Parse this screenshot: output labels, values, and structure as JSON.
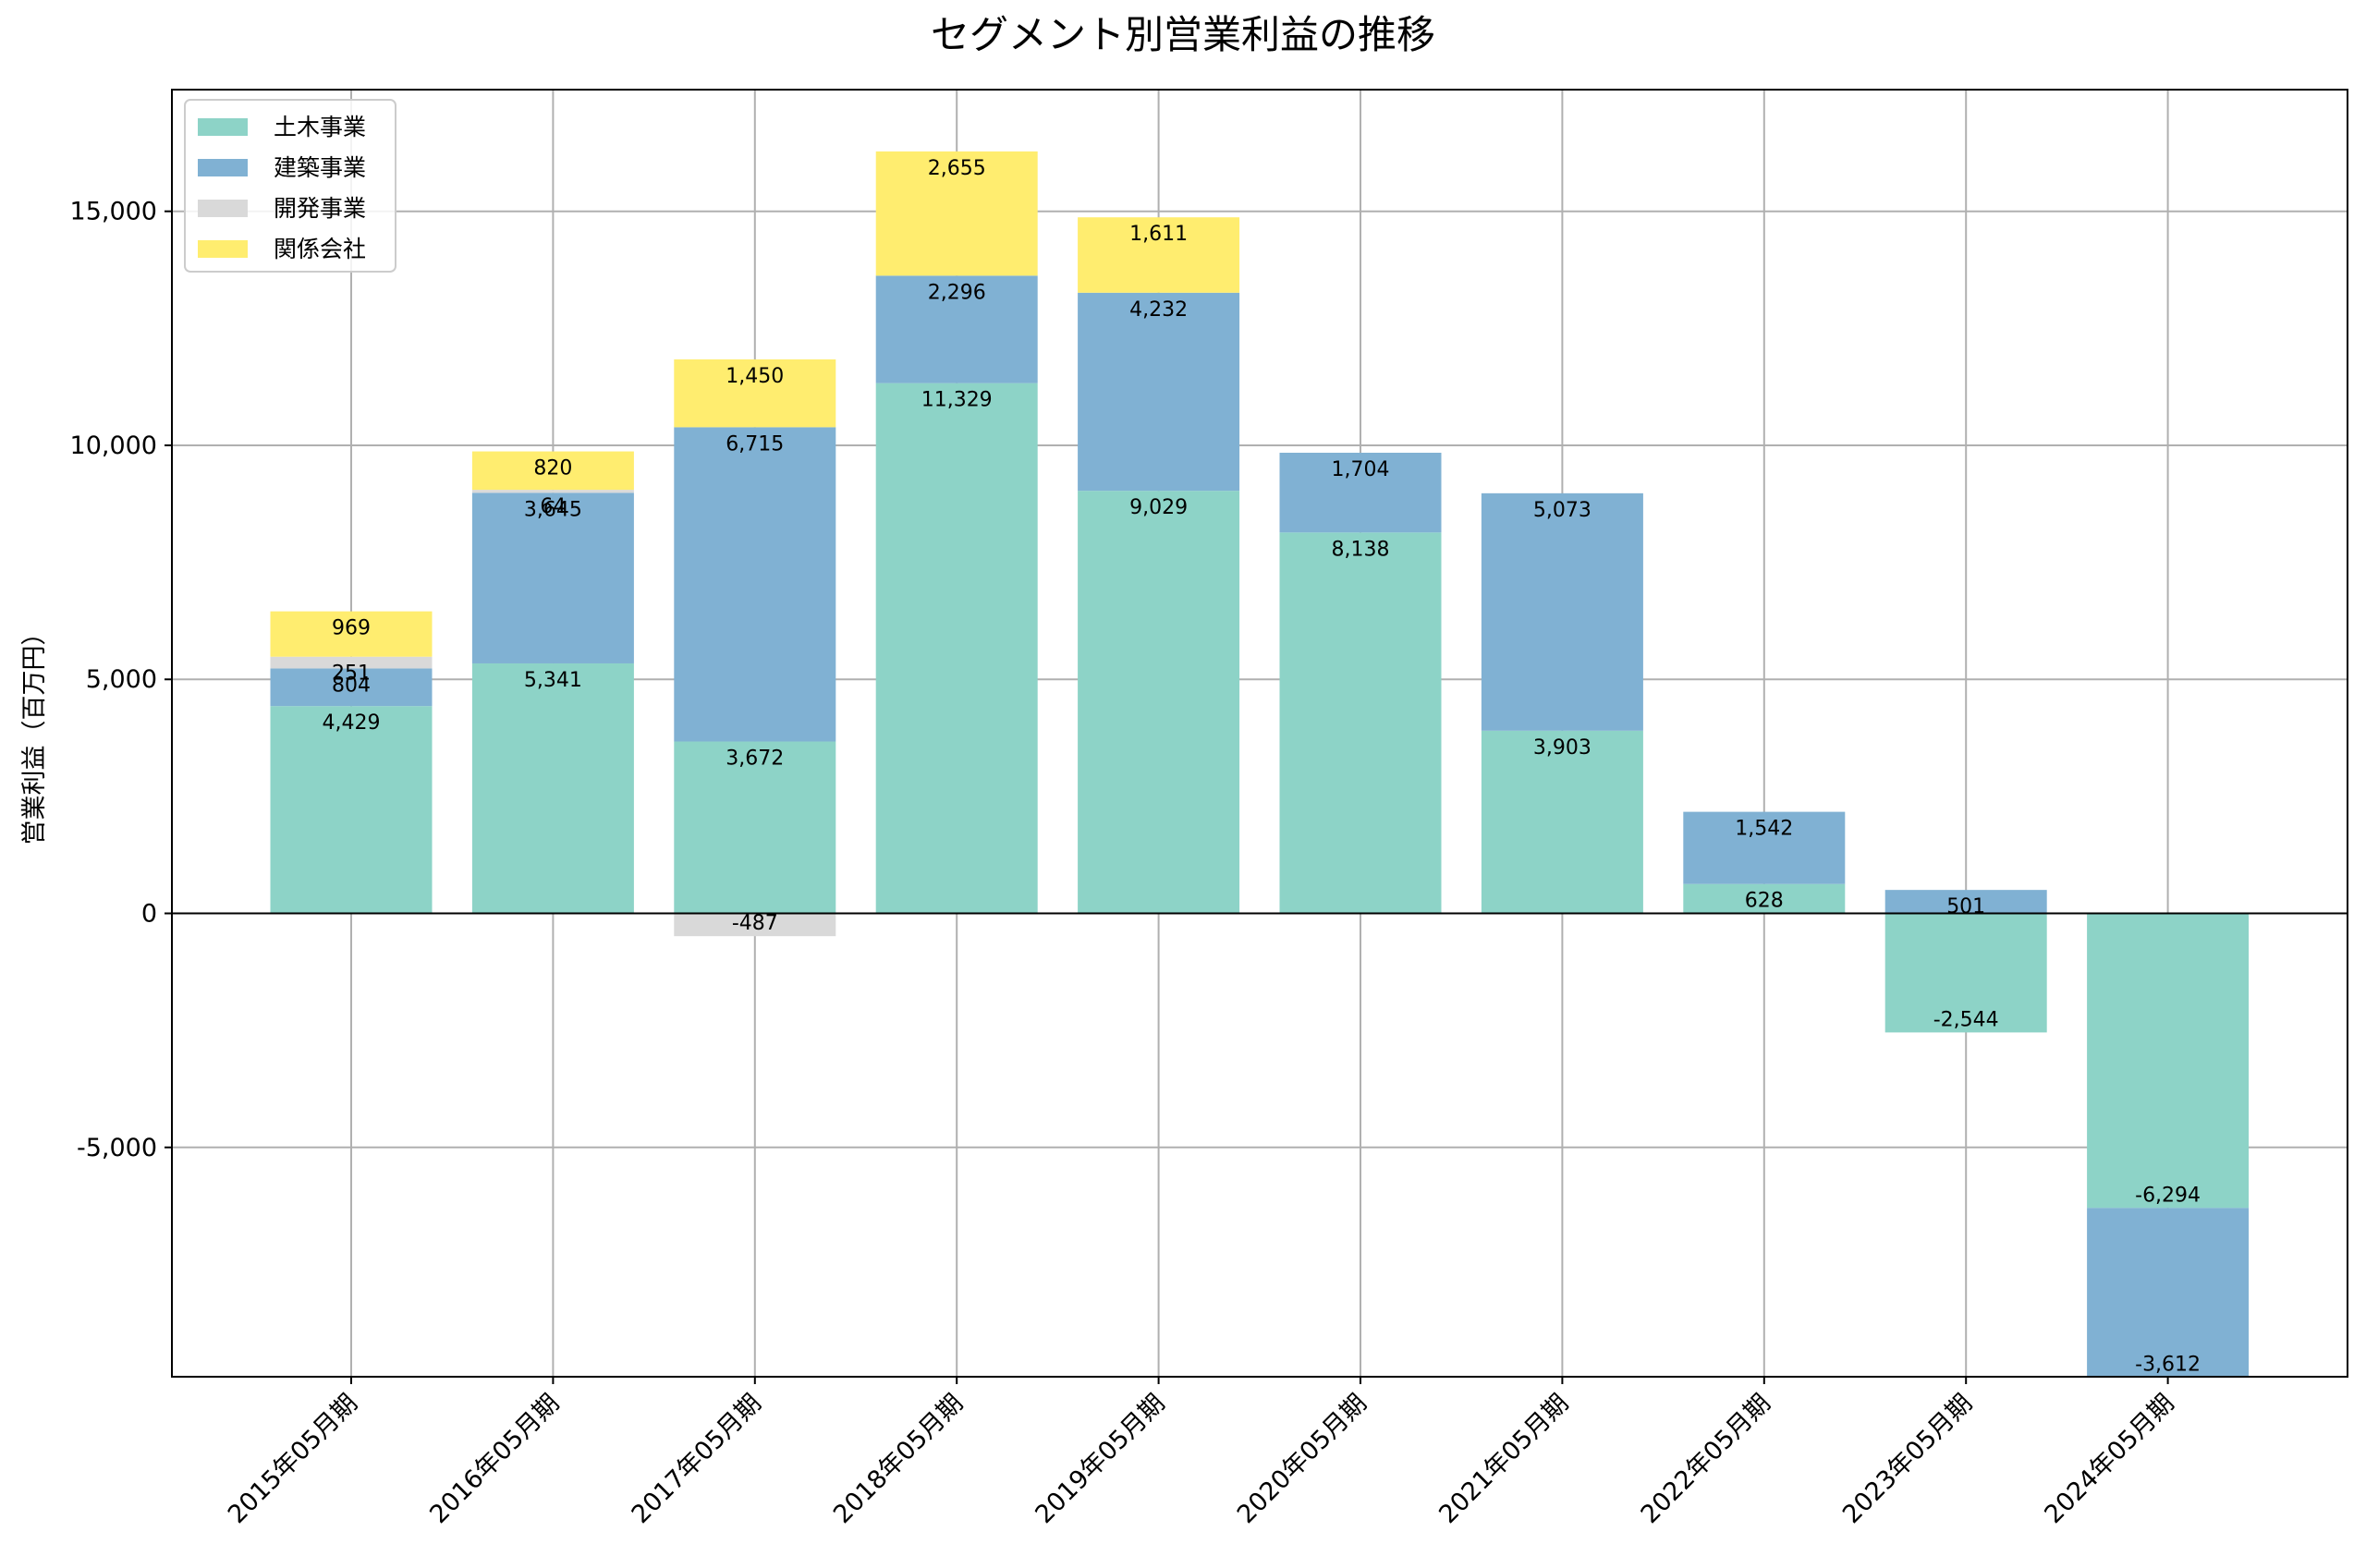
{
  "chart_data": {
    "type": "bar",
    "stacked": true,
    "title": "セグメント別営業利益の推移",
    "xlabel": "",
    "ylabel": "営業利益（百万円）",
    "ylim": [
      -9900,
      17600
    ],
    "yticks": [
      -5000,
      0,
      5000,
      10000,
      15000
    ],
    "ytick_labels": [
      "-5,000",
      "0",
      "5,000",
      "10,000",
      "15,000"
    ],
    "grid": true,
    "legend_position": "top-left",
    "categories": [
      "2015年05月期",
      "2016年05月期",
      "2017年05月期",
      "2018年05月期",
      "2019年05月期",
      "2020年05月期",
      "2021年05月期",
      "2022年05月期",
      "2023年05月期",
      "2024年05月期"
    ],
    "series": [
      {
        "name": "土木事業",
        "color": "#8dd3c7",
        "values": [
          4429,
          5341,
          3672,
          11329,
          9029,
          8138,
          3903,
          628,
          -2544,
          -6294
        ]
      },
      {
        "name": "建築事業",
        "color": "#80b1d3",
        "values": [
          804,
          3645,
          6715,
          2296,
          4232,
          1704,
          5073,
          1542,
          501,
          -3612
        ]
      },
      {
        "name": "開発事業",
        "color": "#d9d9d9",
        "values": [
          251,
          64,
          -487,
          null,
          null,
          null,
          null,
          null,
          null,
          null
        ]
      },
      {
        "name": "関係会社",
        "color": "#ffed6f",
        "values": [
          969,
          820,
          1450,
          2655,
          1611,
          null,
          null,
          null,
          null,
          null
        ]
      }
    ]
  }
}
